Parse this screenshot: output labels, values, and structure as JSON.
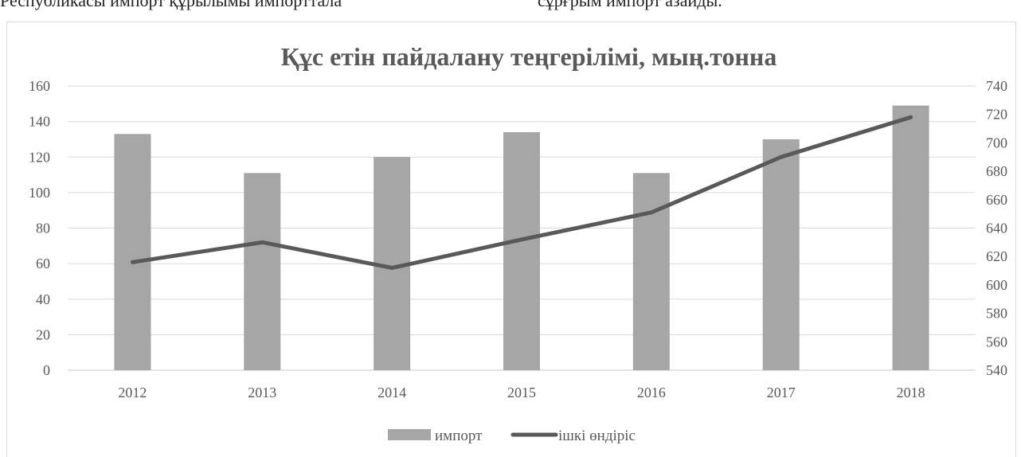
{
  "page_text": {
    "left": "Республикасы импорт құрылымы импорттала",
    "right": "сұрғрым импорт азайды."
  },
  "chart_data": {
    "type": "bar",
    "title": "Құс етін пайдалану теңгерілімі, мың.тонна",
    "categories": [
      "2012",
      "2013",
      "2014",
      "2015",
      "2016",
      "2017",
      "2018"
    ],
    "series": [
      {
        "name": "импорт",
        "type": "bar",
        "axis": "left",
        "color": "#a6a6a6",
        "values": [
          133,
          111,
          120,
          134,
          111,
          130,
          149
        ]
      },
      {
        "name": "ішкі өндіріс",
        "type": "line",
        "axis": "right",
        "color": "#595959",
        "values": [
          616,
          630,
          612,
          632,
          651,
          690,
          718
        ]
      }
    ],
    "y_left": {
      "ylim": [
        0,
        160
      ],
      "ticks": [
        "0",
        "20",
        "40",
        "60",
        "80",
        "100",
        "120",
        "140",
        "160"
      ]
    },
    "y_right": {
      "ylim": [
        540,
        740
      ],
      "ticks": [
        "540",
        "560",
        "580",
        "600",
        "620",
        "640",
        "660",
        "680",
        "700",
        "720",
        "740"
      ]
    },
    "grid": true,
    "legend_position": "bottom"
  }
}
